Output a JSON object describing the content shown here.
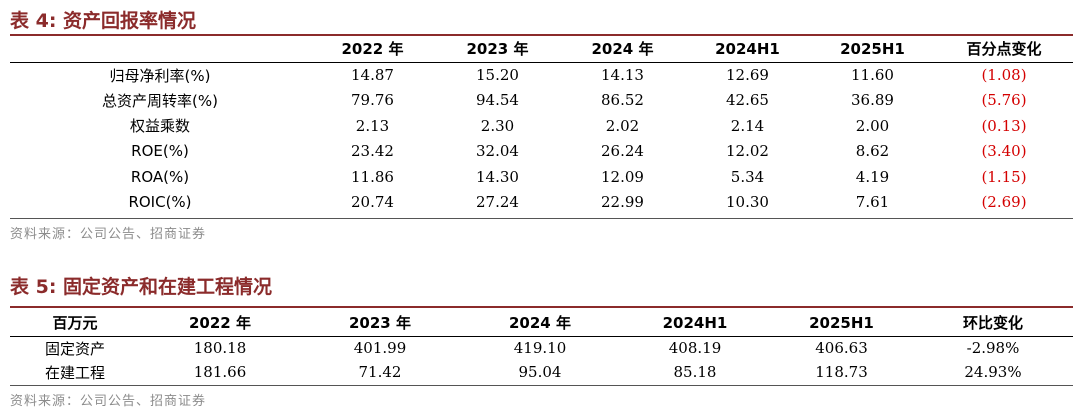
{
  "table4": {
    "caption": "表 4:  资产回报率情况",
    "headers": [
      "",
      "2022 年",
      "2023 年",
      "2024 年",
      "2024H1",
      "2025H1",
      "百分点变化"
    ],
    "rows": [
      [
        "归母净利率(%)",
        "14.87",
        "15.20",
        "14.13",
        "12.69",
        "11.60",
        "(1.08)"
      ],
      [
        "总资产周转率(%)",
        "79.76",
        "94.54",
        "86.52",
        "42.65",
        "36.89",
        "(5.76)"
      ],
      [
        "权益乘数",
        "2.13",
        "2.30",
        "2.02",
        "2.14",
        "2.00",
        "(0.13)"
      ],
      [
        "ROE(%)",
        "23.42",
        "32.04",
        "26.24",
        "12.02",
        "8.62",
        "(3.40)"
      ],
      [
        "ROA(%)",
        "11.86",
        "14.30",
        "12.09",
        "5.34",
        "4.19",
        "(1.15)"
      ],
      [
        "ROIC(%)",
        "20.74",
        "27.24",
        "22.99",
        "10.30",
        "7.61",
        "(2.69)"
      ]
    ],
    "source": "资料来源：公司公告、招商证券"
  },
  "table5": {
    "caption": "表 5:  固定资产和在建工程情况",
    "headers": [
      "百万元",
      "2022 年",
      "2023 年",
      "2024 年",
      "2024H1",
      "2025H1",
      "环比变化"
    ],
    "rows": [
      [
        "固定资产",
        "180.18",
        "401.99",
        "419.10",
        "408.19",
        "406.63",
        "-2.98%"
      ],
      [
        "在建工程",
        "181.66",
        "71.42",
        "95.04",
        "85.18",
        "118.73",
        "24.93%"
      ]
    ],
    "source": "资料来源：公司公告、招商证券"
  },
  "colors": {
    "caption": "#8b2b2b",
    "negative": "#d40000",
    "source": "#8c8c8c"
  }
}
